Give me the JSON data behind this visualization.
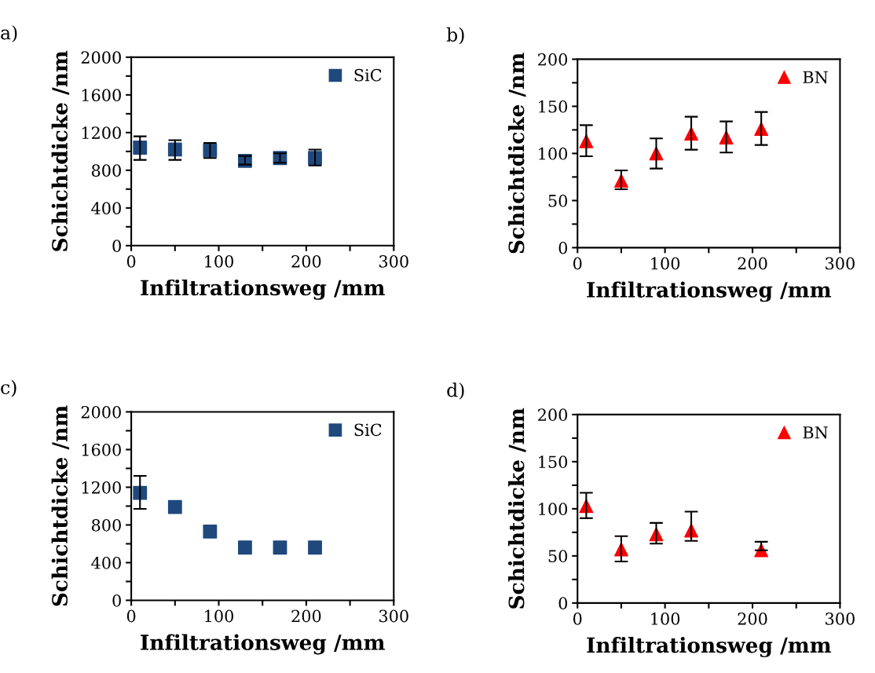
{
  "chart_data": [
    {
      "type": "scatter",
      "title": "a)",
      "xlabel": "Infiltrationsweg /mm",
      "ylabel": "Schichtdicke /nm",
      "x": [
        10,
        50,
        90,
        130,
        170,
        210
      ],
      "marker": "square",
      "legend": "top right",
      "grid": false,
      "series": [
        {
          "name": "SiC",
          "color": "#1f497d",
          "values": [
            1040,
            1020,
            1010,
            900,
            930,
            930
          ],
          "errors": [
            [
              910,
              1160
            ],
            [
              910,
              1120
            ],
            [
              930,
              1090
            ],
            [
              860,
              950
            ],
            [
              880,
              980
            ],
            [
              850,
              1020
            ]
          ]
        }
      ],
      "xlim": [
        0,
        300
      ],
      "xticks": [
        0,
        {
          "value": 50,
          "label": null
        },
        100,
        {
          "value": 150,
          "label": null
        },
        200,
        {
          "value": 250,
          "label": null
        },
        300
      ],
      "ylim": [
        0,
        2000
      ],
      "yticks": [
        0,
        {
          "value": 200,
          "label": null
        },
        400,
        {
          "value": 600,
          "label": null
        },
        800,
        {
          "value": 1000,
          "label": null
        },
        1200,
        {
          "value": 1400,
          "label": null
        },
        1600,
        {
          "value": 1800,
          "label": null
        },
        2000
      ]
    },
    {
      "type": "scatter",
      "title": "b)",
      "xlabel": "Infiltrationsweg /mm",
      "ylabel": "Schichtdicke /nm",
      "x": [
        10,
        50,
        90,
        130,
        170,
        210
      ],
      "marker": "triangle",
      "legend": "top right",
      "grid": false,
      "series": [
        {
          "name": "BN",
          "color": "#ff0000",
          "values": [
            113,
            71,
            100,
            121,
            117,
            126
          ],
          "errors": [
            [
              97,
              130
            ],
            [
              62,
              82
            ],
            [
              84,
              116
            ],
            [
              104,
              139
            ],
            [
              101,
              134
            ],
            [
              109,
              144
            ]
          ]
        }
      ],
      "xlim": [
        0,
        300
      ],
      "xticks": [
        0,
        {
          "value": 50,
          "label": null
        },
        100,
        {
          "value": 150,
          "label": null
        },
        200,
        {
          "value": 250,
          "label": null
        },
        300
      ],
      "ylim": [
        0,
        200
      ],
      "yticks": [
        0,
        {
          "value": 25,
          "label": null
        },
        50,
        {
          "value": 75,
          "label": null
        },
        100,
        {
          "value": 125,
          "label": null
        },
        150,
        {
          "value": 175,
          "label": null
        },
        200
      ]
    },
    {
      "type": "scatter",
      "title": "c)",
      "xlabel": "Infiltrationsweg /mm",
      "ylabel": "Schichtdicke /nm",
      "x": [
        10,
        50,
        90,
        130,
        170,
        210
      ],
      "marker": "square",
      "legend": "top right",
      "grid": false,
      "series": [
        {
          "name": "SiC",
          "color": "#1f497d",
          "values": [
            1140,
            990,
            730,
            560,
            560,
            560
          ],
          "errors": [
            [
              970,
              1320
            ],
            null,
            null,
            null,
            null,
            null
          ]
        }
      ],
      "xlim": [
        0,
        300
      ],
      "xticks": [
        0,
        {
          "value": 50,
          "label": null
        },
        100,
        {
          "value": 150,
          "label": null
        },
        200,
        {
          "value": 250,
          "label": null
        },
        300
      ],
      "ylim": [
        0,
        2000
      ],
      "yticks": [
        0,
        {
          "value": 200,
          "label": null
        },
        400,
        {
          "value": 600,
          "label": null
        },
        800,
        {
          "value": 1000,
          "label": null
        },
        1200,
        {
          "value": 1400,
          "label": null
        },
        1600,
        {
          "value": 1800,
          "label": null
        },
        2000
      ]
    },
    {
      "type": "scatter",
      "title": "d)",
      "xlabel": "Infiltrationsweg /mm",
      "ylabel": "Schichtdicke /nm",
      "x": [
        10,
        50,
        90,
        130,
        210
      ],
      "marker": "triangle",
      "legend": "top right",
      "grid": false,
      "series": [
        {
          "name": "BN",
          "color": "#ff0000",
          "values": [
            103,
            57,
            73,
            77,
            56
          ],
          "errors": [
            [
              90,
              117
            ],
            [
              44,
              71
            ],
            [
              63,
              85
            ],
            [
              66,
              97
            ],
            [
              56,
              65
            ]
          ]
        }
      ],
      "xlim": [
        0,
        300
      ],
      "xticks": [
        0,
        {
          "value": 50,
          "label": null
        },
        100,
        {
          "value": 150,
          "label": null
        },
        200,
        {
          "value": 250,
          "label": null
        },
        300
      ],
      "ylim": [
        0,
        200
      ],
      "yticks": [
        0,
        {
          "value": 25,
          "label": null
        },
        50,
        {
          "value": 75,
          "label": null
        },
        100,
        {
          "value": 125,
          "label": null
        },
        150,
        {
          "value": 175,
          "label": null
        },
        200
      ]
    }
  ]
}
